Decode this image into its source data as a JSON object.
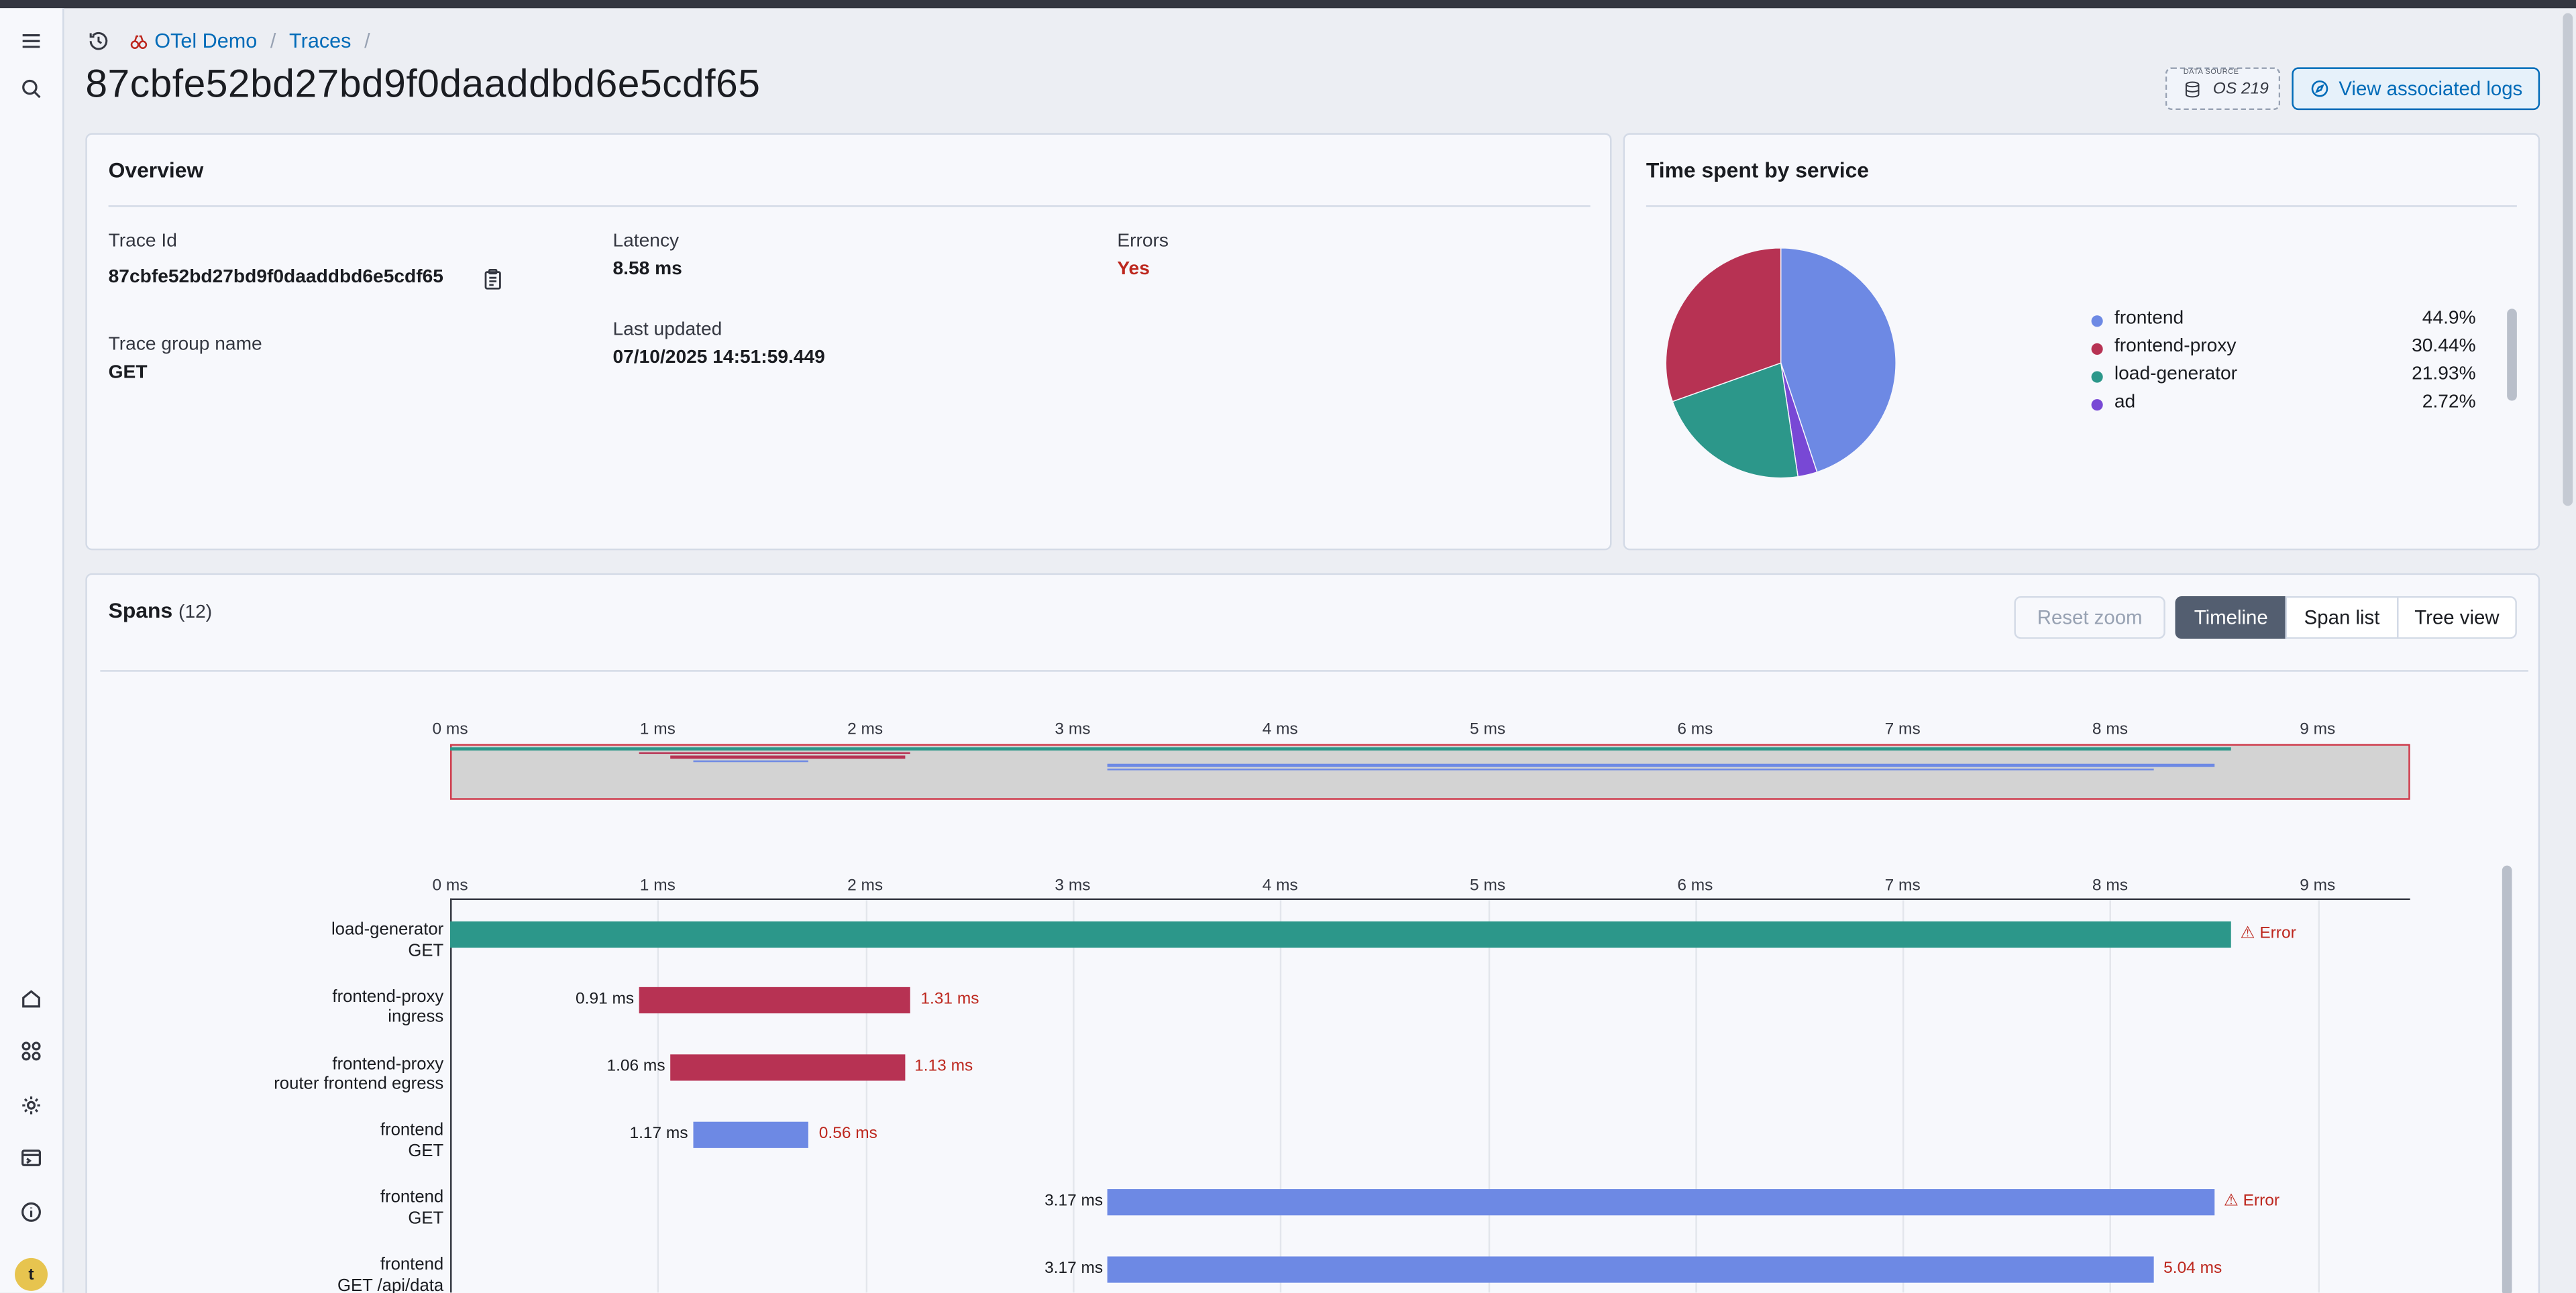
{
  "breadcrumb": {
    "items": [
      "OTel Demo",
      "Traces"
    ],
    "separator": "/"
  },
  "page": {
    "title": "87cbfe52bd27bd9f0daaddbd6e5cdf65"
  },
  "data_source": {
    "caption": "DATA SOURCE",
    "value": "OS 219"
  },
  "actions": {
    "view_logs": "View associated logs"
  },
  "overview": {
    "title": "Overview",
    "trace_id_label": "Trace Id",
    "trace_id": "87cbfe52bd27bd9f0daaddbd6e5cdf65",
    "latency_label": "Latency",
    "latency": "8.58 ms",
    "errors_label": "Errors",
    "errors": "Yes",
    "last_updated_label": "Last updated",
    "last_updated": "07/10/2025 14:51:59.449",
    "trace_group_label": "Trace group name",
    "trace_group": "GET"
  },
  "time_by_service": {
    "title": "Time spent by service",
    "legend": [
      {
        "name": "frontend",
        "pct": "44.9%",
        "color": "#6d89e4"
      },
      {
        "name": "frontend-proxy",
        "pct": "30.44%",
        "color": "#b73253"
      },
      {
        "name": "load-generator",
        "pct": "21.93%",
        "color": "#2c978a"
      },
      {
        "name": "ad",
        "pct": "2.72%",
        "color": "#7848d5"
      }
    ]
  },
  "chart_data": {
    "type": "pie",
    "title": "Time spent by service",
    "labels": [
      "frontend",
      "ad",
      "load-generator",
      "frontend-proxy"
    ],
    "values": [
      44.9,
      2.72,
      21.93,
      30.44
    ]
  },
  "spans": {
    "title": "Spans",
    "count": "(12)",
    "reset_zoom": "Reset zoom",
    "views": [
      "Timeline",
      "Span list",
      "Tree view"
    ],
    "active_view": "Timeline",
    "axis_ticks": [
      "0 ms",
      "1 ms",
      "2 ms",
      "3 ms",
      "4 ms",
      "5 ms",
      "6 ms",
      "7 ms",
      "8 ms",
      "9 ms"
    ],
    "rows": [
      {
        "service": "load-generator",
        "op": "GET",
        "start": 0,
        "duration": 8.58,
        "color": "#2c978a",
        "left_label": "",
        "right_label": "⚠ Error"
      },
      {
        "service": "frontend-proxy",
        "op": "ingress",
        "start": 0.91,
        "duration": 1.31,
        "color": "#b73253",
        "left_label": "0.91 ms",
        "right_label": "1.31 ms"
      },
      {
        "service": "frontend-proxy",
        "op": "router frontend egress",
        "start": 1.06,
        "duration": 1.13,
        "color": "#b73253",
        "left_label": "1.06 ms",
        "right_label": "1.13 ms"
      },
      {
        "service": "frontend",
        "op": "GET",
        "start": 1.17,
        "duration": 0.56,
        "color": "#6d89e4",
        "left_label": "1.17 ms",
        "right_label": "0.56 ms"
      },
      {
        "service": "frontend",
        "op": "GET",
        "start": 3.17,
        "duration": 5.33,
        "color": "#6d89e4",
        "left_label": "3.17 ms",
        "right_label": "⚠ Error"
      },
      {
        "service": "frontend",
        "op": "GET /api/data",
        "start": 3.17,
        "duration": 5.04,
        "color": "#6d89e4",
        "left_label": "3.17 ms",
        "right_label": "5.04 ms"
      }
    ]
  }
}
